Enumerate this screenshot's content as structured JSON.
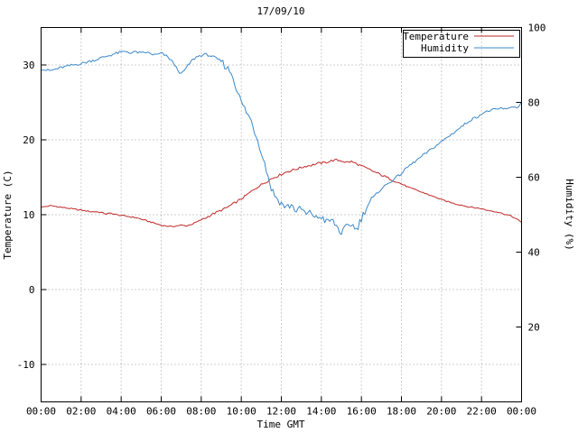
{
  "chart_data": {
    "type": "line",
    "title": "17/09/10",
    "xlabel": "Time GMT",
    "ylabel": "Temperature (C)",
    "y2label": "Humidity (%)",
    "legend_position": "top-right",
    "grid": true,
    "grid_color": "#9e9e9e",
    "x_range_hours": [
      0,
      24
    ],
    "x_tick_interval_hours": 2,
    "x_tick_labels": [
      "00:00",
      "02:00",
      "04:00",
      "06:00",
      "08:00",
      "10:00",
      "12:00",
      "14:00",
      "16:00",
      "18:00",
      "20:00",
      "22:00",
      "00:00"
    ],
    "y_range": [
      -15,
      35
    ],
    "y_ticks": [
      -10,
      0,
      10,
      20,
      30
    ],
    "y2_range": [
      0,
      100
    ],
    "y2_ticks": [
      20,
      40,
      60,
      80,
      100
    ],
    "sample_interval_minutes": 15,
    "series": [
      {
        "name": "Temperature",
        "axis": "y",
        "color": "#c02828",
        "noise_segments": [
          {
            "from": 0,
            "to": 8,
            "amp": 0.08
          },
          {
            "from": 8,
            "to": 18,
            "amp": 0.15
          },
          {
            "from": 18,
            "to": 24.01,
            "amp": 0.08
          }
        ],
        "values": [
          11.0,
          11.1,
          11.2,
          11.1,
          11.0,
          10.9,
          10.8,
          10.7,
          10.6,
          10.5,
          10.4,
          10.4,
          10.3,
          10.1,
          10.2,
          10.0,
          9.9,
          9.8,
          9.7,
          9.6,
          9.4,
          9.2,
          9.0,
          8.8,
          8.6,
          8.5,
          8.4,
          8.5,
          8.6,
          8.5,
          8.7,
          9.0,
          9.3,
          9.6,
          10.0,
          10.3,
          10.6,
          10.9,
          11.3,
          11.7,
          12.1,
          12.6,
          13.1,
          13.6,
          14.0,
          14.4,
          14.8,
          15.1,
          15.4,
          15.7,
          15.9,
          16.1,
          16.3,
          16.5,
          16.6,
          16.8,
          16.9,
          17.0,
          17.2,
          17.3,
          17.2,
          17.0,
          17.1,
          16.8,
          16.5,
          16.2,
          15.9,
          15.6,
          15.3,
          15.0,
          14.7,
          14.4,
          14.1,
          13.8,
          13.5,
          13.3,
          13.0,
          12.8,
          12.5,
          12.3,
          12.0,
          11.8,
          11.6,
          11.4,
          11.3,
          11.1,
          11.0,
          10.9,
          10.8,
          10.6,
          10.5,
          10.4,
          10.2,
          10.0,
          9.8,
          9.4,
          9.0
        ]
      },
      {
        "name": "Humidity",
        "axis": "y2",
        "color": "#3c88c8",
        "noise_segments": [
          {
            "from": 0,
            "to": 9,
            "amp": 0.35
          },
          {
            "from": 9,
            "to": 16.5,
            "amp": 1.0
          },
          {
            "from": 16.5,
            "to": 24.01,
            "amp": 0.35
          }
        ],
        "values": [
          89.0,
          88.6,
          88.5,
          88.9,
          89.3,
          89.6,
          89.9,
          90.1,
          90.4,
          90.7,
          91.1,
          91.4,
          91.9,
          92.3,
          92.7,
          93.1,
          93.4,
          93.6,
          93.2,
          93.5,
          93.1,
          93.4,
          92.9,
          92.7,
          93.1,
          92.4,
          91.3,
          89.3,
          87.5,
          89.2,
          91.0,
          92.1,
          92.6,
          92.8,
          92.4,
          91.7,
          91.0,
          89.4,
          88.0,
          84.0,
          80.0,
          77.5,
          75.0,
          71.0,
          67.0,
          62.0,
          57.0,
          54.5,
          53.0,
          52.0,
          52.6,
          51.0,
          51.6,
          50.0,
          50.6,
          49.0,
          49.6,
          48.0,
          48.6,
          47.0,
          45.0,
          46.6,
          47.6,
          46.0,
          49.0,
          52.0,
          54.0,
          55.5,
          57.0,
          58.0,
          59.0,
          60.0,
          61.0,
          62.5,
          63.5,
          64.5,
          65.5,
          66.5,
          67.5,
          68.5,
          69.5,
          70.5,
          71.5,
          72.5,
          73.5,
          74.5,
          75.5,
          76.0,
          77.0,
          77.5,
          78.0,
          78.0,
          78.5,
          78.0,
          79.0,
          78.5,
          80.0
        ]
      }
    ]
  }
}
